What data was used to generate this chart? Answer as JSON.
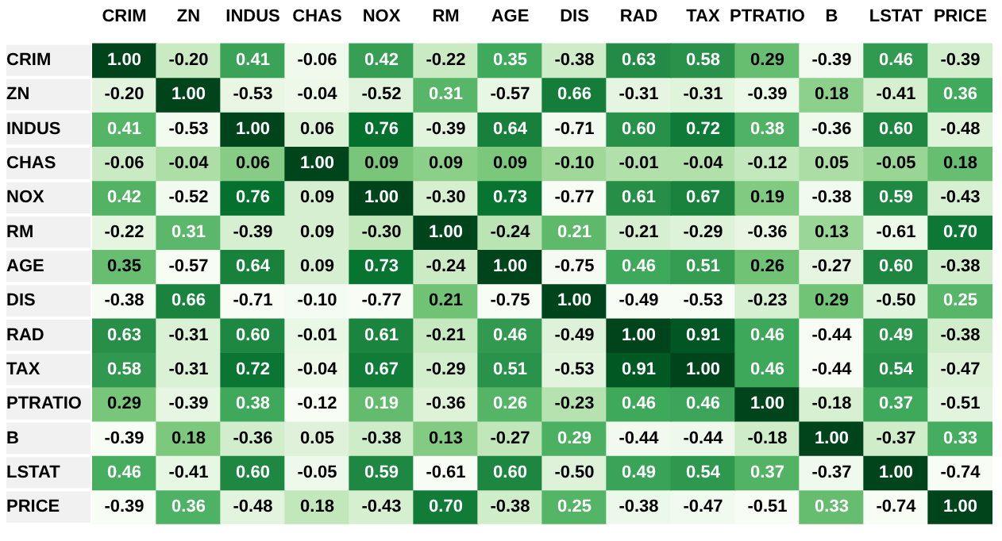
{
  "chart_data": {
    "type": "heatmap",
    "data_labels": true,
    "categories": [
      "CRIM",
      "ZN",
      "INDUS",
      "CHAS",
      "NOX",
      "RM",
      "AGE",
      "DIS",
      "RAD",
      "TAX",
      "PTRATIO",
      "B",
      "LSTAT",
      "PRICE"
    ],
    "y_categories": [
      "CRIM",
      "ZN",
      "INDUS",
      "CHAS",
      "NOX",
      "RM",
      "AGE",
      "DIS",
      "RAD",
      "TAX",
      "PTRATIO",
      "B",
      "LSTAT",
      "PRICE"
    ],
    "cells": [
      [
        1.0,
        -0.2,
        0.41,
        -0.06,
        0.42,
        -0.22,
        0.35,
        -0.38,
        0.63,
        0.58,
        0.29,
        -0.39,
        0.46,
        -0.39
      ],
      [
        -0.2,
        1.0,
        -0.53,
        -0.04,
        -0.52,
        0.31,
        -0.57,
        0.66,
        -0.31,
        -0.31,
        -0.39,
        0.18,
        -0.41,
        0.36
      ],
      [
        0.41,
        -0.53,
        1.0,
        0.06,
        0.76,
        -0.39,
        0.64,
        -0.71,
        0.6,
        0.72,
        0.38,
        -0.36,
        0.6,
        -0.48
      ],
      [
        -0.06,
        -0.04,
        0.06,
        1.0,
        0.09,
        0.09,
        0.09,
        -0.1,
        -0.01,
        -0.04,
        -0.12,
        0.05,
        -0.05,
        0.18
      ],
      [
        0.42,
        -0.52,
        0.76,
        0.09,
        1.0,
        -0.3,
        0.73,
        -0.77,
        0.61,
        0.67,
        0.19,
        -0.38,
        0.59,
        -0.43
      ],
      [
        -0.22,
        0.31,
        -0.39,
        0.09,
        -0.3,
        1.0,
        -0.24,
        0.21,
        -0.21,
        -0.29,
        -0.36,
        0.13,
        -0.61,
        0.7
      ],
      [
        0.35,
        -0.57,
        0.64,
        0.09,
        0.73,
        -0.24,
        1.0,
        -0.75,
        0.46,
        0.51,
        0.26,
        -0.27,
        0.6,
        -0.38
      ],
      [
        -0.38,
        0.66,
        -0.71,
        -0.1,
        -0.77,
        0.21,
        -0.75,
        1.0,
        -0.49,
        -0.53,
        -0.23,
        0.29,
        -0.5,
        0.25
      ],
      [
        0.63,
        -0.31,
        0.6,
        -0.01,
        0.61,
        -0.21,
        0.46,
        -0.49,
        1.0,
        0.91,
        0.46,
        -0.44,
        0.49,
        -0.38
      ],
      [
        0.58,
        -0.31,
        0.72,
        -0.04,
        0.67,
        -0.29,
        0.51,
        -0.53,
        0.91,
        1.0,
        0.46,
        -0.44,
        0.54,
        -0.47
      ],
      [
        0.29,
        -0.39,
        0.38,
        -0.12,
        0.19,
        -0.36,
        0.26,
        -0.23,
        0.46,
        0.46,
        1.0,
        -0.18,
        0.37,
        -0.51
      ],
      [
        -0.39,
        0.18,
        -0.36,
        0.05,
        -0.38,
        0.13,
        -0.27,
        0.29,
        -0.44,
        -0.44,
        -0.18,
        1.0,
        -0.37,
        0.33
      ],
      [
        0.46,
        -0.41,
        0.6,
        -0.05,
        0.59,
        -0.61,
        0.6,
        -0.5,
        0.49,
        0.54,
        0.37,
        -0.37,
        1.0,
        -0.74
      ],
      [
        -0.39,
        0.36,
        -0.48,
        0.18,
        -0.43,
        0.7,
        -0.38,
        0.25,
        -0.38,
        -0.47,
        -0.51,
        0.33,
        -0.74,
        1.0
      ]
    ],
    "cell_labels": [
      [
        "1.00",
        "-0.20",
        "0.41",
        "-0.06",
        "0.42",
        "-0.22",
        "0.35",
        "-0.38",
        "0.63",
        "0.58",
        "0.29",
        "-0.39",
        "0.46",
        "-0.39"
      ],
      [
        "-0.20",
        "1.00",
        "-0.53",
        "-0.04",
        "-0.52",
        "0.31",
        "-0.57",
        "0.66",
        "-0.31",
        "-0.31",
        "-0.39",
        "0.18",
        "-0.41",
        "0.36"
      ],
      [
        "0.41",
        "-0.53",
        "1.00",
        "0.06",
        "0.76",
        "-0.39",
        "0.64",
        "-0.71",
        "0.60",
        "0.72",
        "0.38",
        "-0.36",
        "0.60",
        "-0.48"
      ],
      [
        "-0.06",
        "-0.04",
        "0.06",
        "1.00",
        "0.09",
        "0.09",
        "0.09",
        "-0.10",
        "-0.01",
        "-0.04",
        "-0.12",
        "0.05",
        "-0.05",
        "0.18"
      ],
      [
        "0.42",
        "-0.52",
        "0.76",
        "0.09",
        "1.00",
        "-0.30",
        "0.73",
        "-0.77",
        "0.61",
        "0.67",
        "0.19",
        "-0.38",
        "0.59",
        "-0.43"
      ],
      [
        "-0.22",
        "0.31",
        "-0.39",
        "0.09",
        "-0.30",
        "1.00",
        "-0.24",
        "0.21",
        "-0.21",
        "-0.29",
        "-0.36",
        "0.13",
        "-0.61",
        "0.70"
      ],
      [
        "0.35",
        "-0.57",
        "0.64",
        "0.09",
        "0.73",
        "-0.24",
        "1.00",
        "-0.75",
        "0.46",
        "0.51",
        "0.26",
        "-0.27",
        "0.60",
        "-0.38"
      ],
      [
        "-0.38",
        "0.66",
        "-0.71",
        "-0.10",
        "-0.77",
        "0.21",
        "-0.75",
        "1.00",
        "-0.49",
        "-0.53",
        "-0.23",
        "0.29",
        "-0.50",
        "0.25"
      ],
      [
        "0.63",
        "-0.31",
        "0.60",
        "-0.01",
        "0.61",
        "-0.21",
        "0.46",
        "-0.49",
        "1.00",
        "0.91",
        "0.46",
        "-0.44",
        "0.49",
        "-0.38"
      ],
      [
        "0.58",
        "-0.31",
        "0.72",
        "-0.04",
        "0.67",
        "-0.29",
        "0.51",
        "-0.53",
        "0.91",
        "1.00",
        "0.46",
        "-0.44",
        "0.54",
        "-0.47"
      ],
      [
        "0.29",
        "-0.39",
        "0.38",
        "-0.12",
        "0.19",
        "-0.36",
        "0.26",
        "-0.23",
        "0.46",
        "0.46",
        "1.00",
        "-0.18",
        "0.37",
        "-0.51"
      ],
      [
        "-0.39",
        "0.18",
        "-0.36",
        "0.05",
        "-0.38",
        "0.13",
        "-0.27",
        "0.29",
        "-0.44",
        "-0.44",
        "-0.18",
        "1.00",
        "-0.37",
        "0.33"
      ],
      [
        "0.46",
        "-0.41",
        "0.60",
        "-0.05",
        "0.59",
        "-0.61",
        "0.60",
        "-0.50",
        "0.49",
        "0.54",
        "0.37",
        "-0.37",
        "1.00",
        "-0.74"
      ],
      [
        "-0.39",
        "0.36",
        "-0.48",
        "0.18",
        "-0.43",
        "0.70",
        "-0.38",
        "0.25",
        "-0.38",
        "-0.47",
        "-0.51",
        "0.33",
        "-0.74",
        "1.00"
      ]
    ]
  }
}
